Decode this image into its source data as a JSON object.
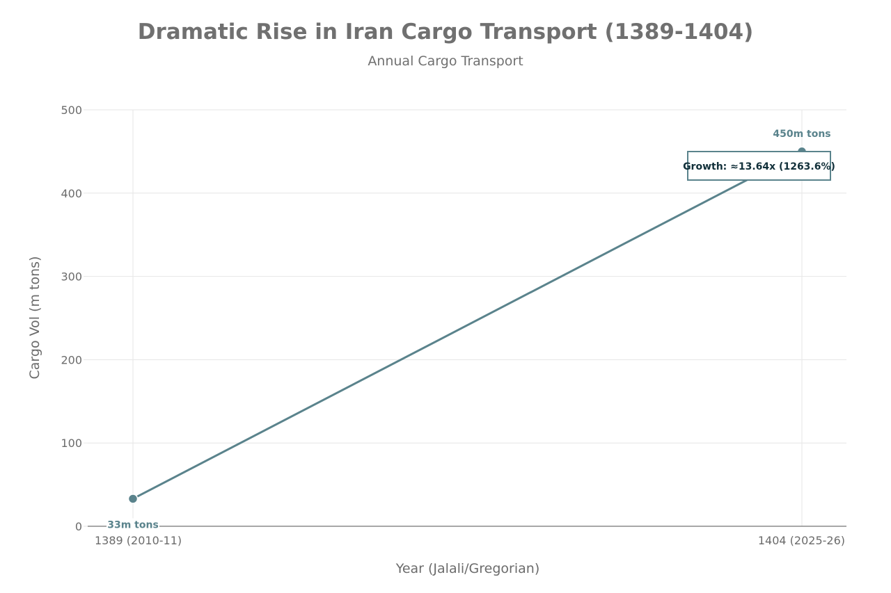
{
  "chart_data": {
    "type": "line",
    "title": "Dramatic Rise in Iran Cargo Transport (1389-1404)",
    "subtitle": "Annual Cargo Transport",
    "xlabel": "Year (Jalali/Gregorian)",
    "ylabel": "Cargo Vol (m tons)",
    "categories": [
      "1389 (2010-11)",
      "1404 (2025-26)"
    ],
    "series": [
      {
        "name": "Annual Cargo Transport",
        "values": [
          33,
          450
        ],
        "data_labels": [
          "33m tons",
          "450m tons"
        ]
      }
    ],
    "ylim": [
      0,
      500
    ],
    "yticks": [
      0,
      100,
      200,
      300,
      400,
      500
    ],
    "grid": true,
    "annotation": {
      "text": "Growth: ≈13.64x (1263.6%)",
      "anchor": "1404 (2025-26)"
    },
    "colors": {
      "series": "#5a838c",
      "grid": "#e6e6e6",
      "axis": "#8a8a8a",
      "annotation_border": "#5a838c",
      "annotation_text": "#12303a"
    }
  }
}
